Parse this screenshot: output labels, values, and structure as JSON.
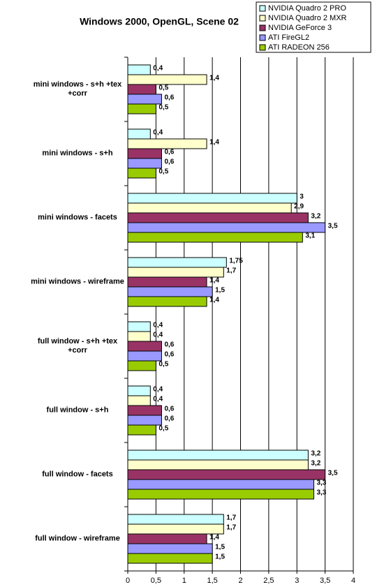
{
  "chart_data": {
    "type": "hbar",
    "title": "Windows 2000, OpenGL, Scene 02",
    "categories": [
      "mini windows - s+h +tex +corr",
      "mini windows - s+h",
      "mini windows - facets",
      "mini windows - wireframe",
      "full window - s+h +tex +corr",
      "full window - s+h",
      "full window - facets",
      "full window - wireframe"
    ],
    "series": [
      {
        "name": "NVIDIA Quadro 2 PRO",
        "color": "#ccffff",
        "values": [
          0.4,
          0.4,
          3,
          1.75,
          0.4,
          0.4,
          3.2,
          1.7
        ],
        "value_labels": [
          "0,4",
          "0,4",
          "3",
          "1,75",
          "0,4",
          "0,4",
          "3,2",
          "1,7"
        ]
      },
      {
        "name": "NVIDIA Quadro 2 MXR",
        "color": "#ffffcc",
        "values": [
          1.4,
          1.4,
          2.9,
          1.7,
          0.4,
          0.4,
          3.2,
          1.7
        ],
        "value_labels": [
          "1,4",
          "1,4",
          "2,9",
          "1,7",
          "0,4",
          "0,4",
          "3,2",
          "1,7"
        ]
      },
      {
        "name": "NVIDIA GeForce 3",
        "color": "#993366",
        "values": [
          0.5,
          0.6,
          3.2,
          1.4,
          0.6,
          0.6,
          3.5,
          1.4
        ],
        "value_labels": [
          "0,5",
          "0,6",
          "3,2",
          "1,4",
          "0,6",
          "0,6",
          "3,5",
          "1,4"
        ]
      },
      {
        "name": "ATI FireGL2",
        "color": "#9999ff",
        "values": [
          0.6,
          0.6,
          3.5,
          1.5,
          0.6,
          0.6,
          3.3,
          1.5
        ],
        "value_labels": [
          "0,6",
          "0,6",
          "3,5",
          "1,5",
          "0,6",
          "0,6",
          "3,3",
          "1,5"
        ]
      },
      {
        "name": "ATI RADEON 256",
        "color": "#99cc00",
        "values": [
          0.5,
          0.5,
          3.1,
          1.4,
          0.5,
          0.5,
          3.3,
          1.5
        ],
        "value_labels": [
          "0,5",
          "0,5",
          "3,1",
          "1,4",
          "0,5",
          "0,5",
          "3,3",
          "1,5"
        ]
      }
    ],
    "xlim": [
      0,
      4
    ],
    "xticks": [
      0,
      {
        "value": 0.5,
        "label": "0,5"
      },
      1,
      {
        "value": 1.5,
        "label": "1,5"
      },
      2,
      {
        "value": 2.5,
        "label": "2,5"
      },
      3,
      {
        "value": 3.5,
        "label": "3,5"
      },
      4
    ],
    "grid": true,
    "legend": "top-right"
  }
}
